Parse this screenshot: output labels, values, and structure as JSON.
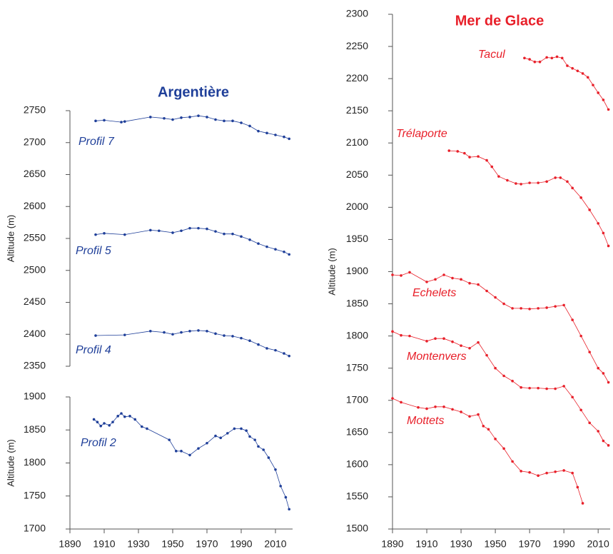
{
  "chart_data": [
    {
      "type": "line",
      "title": "Argentière",
      "title_color": "#1f3f99",
      "y_label": "Altitude (m)",
      "xlim": [
        1890,
        2020
      ],
      "ylim": [
        2350,
        2750
      ],
      "yticks": [
        2350,
        2400,
        2450,
        2500,
        2550,
        2600,
        2650,
        2700,
        2750
      ],
      "series": [
        {
          "name": "Profil 7",
          "color": "#1f3f99",
          "x": [
            1905,
            1910,
            1920,
            1922,
            1937,
            1945,
            1950,
            1955,
            1960,
            1965,
            1970,
            1975,
            1980,
            1985,
            1990,
            1995,
            2000,
            2005,
            2010,
            2015,
            2018
          ],
          "values": [
            2734,
            2735,
            2732,
            2733,
            2740,
            2738,
            2736,
            2739,
            2740,
            2742,
            2740,
            2736,
            2734,
            2734,
            2731,
            2726,
            2718,
            2715,
            2712,
            2709,
            2706
          ]
        },
        {
          "name": "Profil 5",
          "color": "#1f3f99",
          "x": [
            1905,
            1910,
            1922,
            1937,
            1942,
            1950,
            1955,
            1960,
            1965,
            1970,
            1975,
            1980,
            1985,
            1990,
            1995,
            2000,
            2005,
            2010,
            2015,
            2018
          ],
          "values": [
            2556,
            2558,
            2556,
            2563,
            2562,
            2559,
            2562,
            2566,
            2566,
            2565,
            2561,
            2557,
            2557,
            2553,
            2548,
            2542,
            2537,
            2533,
            2529,
            2525
          ]
        },
        {
          "name": "Profil 4",
          "color": "#1f3f99",
          "x": [
            1905,
            1922,
            1937,
            1945,
            1950,
            1955,
            1960,
            1965,
            1970,
            1975,
            1980,
            1985,
            1990,
            1995,
            2000,
            2005,
            2010,
            2015,
            2018
          ],
          "values": [
            2398,
            2399,
            2405,
            2403,
            2400,
            2403,
            2405,
            2406,
            2405,
            2401,
            2398,
            2397,
            2394,
            2390,
            2384,
            2378,
            2375,
            2370,
            2366
          ]
        }
      ]
    },
    {
      "type": "line",
      "y_label": "Altitude (m)",
      "xlim": [
        1890,
        2020
      ],
      "xticks": [
        1890,
        1910,
        1930,
        1950,
        1970,
        1990,
        2010
      ],
      "ylim": [
        1700,
        1900
      ],
      "yticks": [
        1700,
        1750,
        1800,
        1850,
        1900
      ],
      "series": [
        {
          "name": "Profil 2",
          "color": "#1f3f99",
          "x": [
            1904,
            1906,
            1908,
            1910,
            1913,
            1915,
            1918,
            1920,
            1922,
            1925,
            1928,
            1932,
            1935,
            1948,
            1952,
            1955,
            1960,
            1965,
            1970,
            1975,
            1978,
            1982,
            1986,
            1990,
            1993,
            1995,
            1998,
            2000,
            2003,
            2006,
            2010,
            2013,
            2016,
            2018
          ],
          "values": [
            1866,
            1862,
            1856,
            1860,
            1857,
            1862,
            1871,
            1875,
            1870,
            1871,
            1866,
            1855,
            1852,
            1835,
            1818,
            1818,
            1812,
            1822,
            1830,
            1841,
            1838,
            1845,
            1852,
            1852,
            1849,
            1840,
            1835,
            1825,
            1820,
            1808,
            1790,
            1765,
            1748,
            1730
          ]
        }
      ]
    },
    {
      "type": "line",
      "title": "Mer de Glace",
      "title_color": "#e8202a",
      "y_label": "Altitude (m)",
      "xlim": [
        1890,
        2017
      ],
      "xticks": [
        1890,
        1910,
        1930,
        1950,
        1970,
        1990,
        2010
      ],
      "ylim": [
        1500,
        2300
      ],
      "yticks": [
        1500,
        1550,
        1600,
        1650,
        1700,
        1750,
        1800,
        1850,
        1900,
        1950,
        2000,
        2050,
        2100,
        2150,
        2200,
        2250,
        2300
      ],
      "series": [
        {
          "name": "Tacul",
          "color": "#e8202a",
          "x": [
            1967,
            1970,
            1973,
            1976,
            1980,
            1983,
            1986,
            1989,
            1992,
            1995,
            1998,
            2001,
            2004,
            2007,
            2010,
            2013,
            2016
          ],
          "values": [
            2232,
            2230,
            2226,
            2226,
            2233,
            2232,
            2234,
            2232,
            2220,
            2216,
            2212,
            2208,
            2202,
            2190,
            2178,
            2167,
            2152
          ]
        },
        {
          "name": "Trélaporte",
          "color": "#e8202a",
          "x": [
            1923,
            1928,
            1932,
            1935,
            1940,
            1945,
            1948,
            1952,
            1957,
            1962,
            1965,
            1970,
            1975,
            1980,
            1985,
            1988,
            1992,
            1995,
            2000,
            2005,
            2010,
            2013,
            2016
          ],
          "values": [
            2088,
            2087,
            2084,
            2078,
            2079,
            2073,
            2063,
            2048,
            2042,
            2037,
            2036,
            2038,
            2038,
            2040,
            2046,
            2046,
            2040,
            2030,
            2015,
            1996,
            1975,
            1960,
            1940
          ]
        },
        {
          "name": "Echelets",
          "color": "#e8202a",
          "x": [
            1890,
            1895,
            1900,
            1910,
            1915,
            1920,
            1925,
            1930,
            1935,
            1940,
            1945,
            1950,
            1955,
            1960,
            1965,
            1970,
            1975,
            1980,
            1985,
            1990,
            1995,
            2000,
            2005,
            2010,
            2013,
            2016
          ],
          "values": [
            1895,
            1894,
            1899,
            1884,
            1888,
            1895,
            1890,
            1888,
            1882,
            1880,
            1870,
            1860,
            1850,
            1843,
            1843,
            1842,
            1843,
            1844,
            1846,
            1848,
            1825,
            1800,
            1775,
            1750,
            1742,
            1728
          ]
        },
        {
          "name": "Montenvers",
          "color": "#e8202a",
          "x": [
            1890,
            1895,
            1900,
            1910,
            1915,
            1920,
            1925,
            1930,
            1935,
            1940,
            1945,
            1950,
            1955,
            1960,
            1965,
            1970,
            1975,
            1980,
            1985,
            1990,
            1995,
            2000,
            2005,
            2010,
            2013,
            2016
          ],
          "values": [
            1807,
            1801,
            1800,
            1792,
            1796,
            1796,
            1791,
            1785,
            1781,
            1790,
            1770,
            1750,
            1738,
            1730,
            1720,
            1719,
            1719,
            1718,
            1718,
            1722,
            1705,
            1685,
            1665,
            1652,
            1637,
            1630
          ]
        },
        {
          "name": "Mottets",
          "color": "#e8202a",
          "x": [
            1890,
            1895,
            1905,
            1910,
            1915,
            1920,
            1925,
            1930,
            1935,
            1940,
            1943,
            1946,
            1950,
            1955,
            1960,
            1965,
            1970,
            1975,
            1980,
            1985,
            1990,
            1995,
            1998,
            2001
          ],
          "values": [
            1703,
            1697,
            1689,
            1687,
            1690,
            1690,
            1686,
            1682,
            1675,
            1678,
            1660,
            1655,
            1640,
            1625,
            1605,
            1590,
            1588,
            1583,
            1587,
            1589,
            1591,
            1587,
            1565,
            1540
          ]
        }
      ]
    }
  ]
}
